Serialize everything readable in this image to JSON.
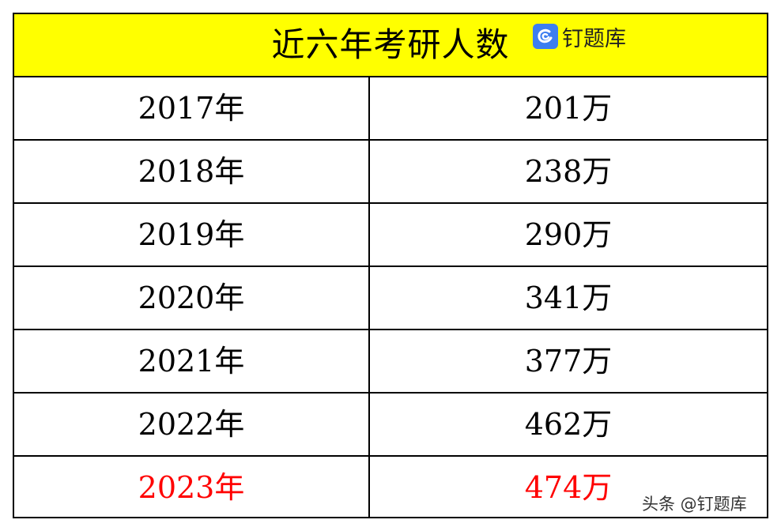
{
  "table": {
    "title": "近六年考研人数",
    "logo": {
      "icon": "dingtiku-logo-icon",
      "text": "钉题库",
      "brand_color": "#3d7ef0"
    },
    "header_background": "#ffff00",
    "rows": [
      {
        "year": "2017年",
        "count": "201万"
      },
      {
        "year": "2018年",
        "count": "238万"
      },
      {
        "year": "2019年",
        "count": "290万"
      },
      {
        "year": "2020年",
        "count": "341万"
      },
      {
        "year": "2021年",
        "count": "377万"
      },
      {
        "year": "2022年",
        "count": "462万"
      },
      {
        "year": "2023年",
        "count": "474万",
        "highlight_color": "#ff0000"
      }
    ]
  },
  "watermark": "头条 @钉题库"
}
